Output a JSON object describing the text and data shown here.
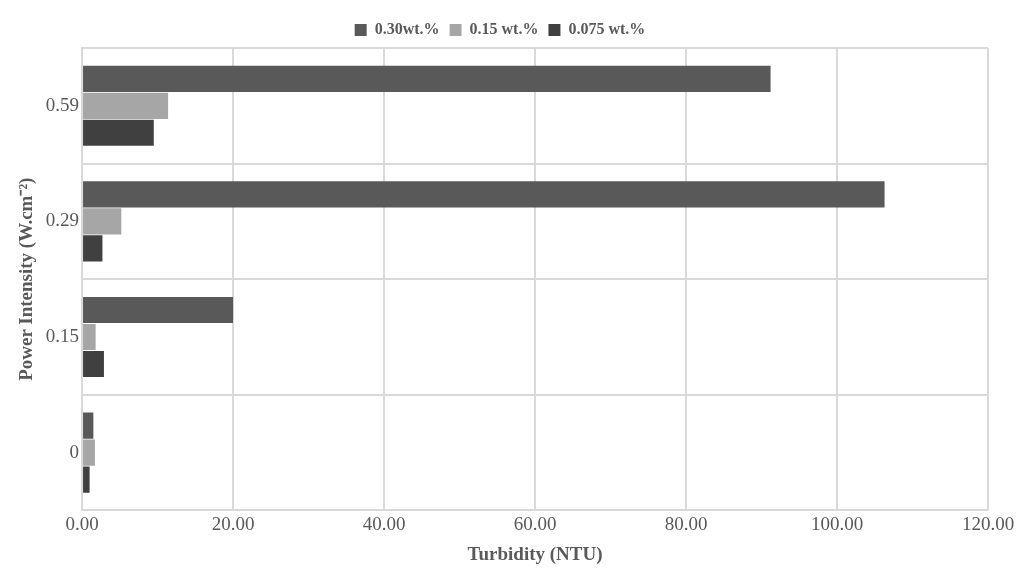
{
  "chart_data": {
    "type": "bar",
    "orientation": "horizontal",
    "xlabel": "Turbidity (NTU)",
    "ylabel": "Power Intensity (W.cm⁻²)",
    "categories": [
      "0.59",
      "0.29",
      "0.15",
      "0"
    ],
    "series": [
      {
        "name": "0.30wt.%",
        "color": "#595959",
        "values": [
          91.2,
          106.3,
          20.0,
          1.5
        ]
      },
      {
        "name": "0.15 wt.%",
        "color": "#a6a6a6",
        "values": [
          11.4,
          5.2,
          1.8,
          1.7
        ]
      },
      {
        "name": "0.075 wt.%",
        "color": "#404040",
        "values": [
          9.5,
          2.7,
          2.9,
          1.0
        ]
      }
    ],
    "xlim": [
      0,
      120
    ],
    "xticks": [
      {
        "value": 0,
        "label": "0.00"
      },
      {
        "value": 20,
        "label": "20.00"
      },
      {
        "value": 40,
        "label": "40.00"
      },
      {
        "value": 60,
        "label": "60.00"
      },
      {
        "value": 80,
        "label": "80.00"
      },
      {
        "value": 100,
        "label": "100.00"
      },
      {
        "value": 120,
        "label": "120.00"
      }
    ],
    "grid": true,
    "legend": "top"
  }
}
